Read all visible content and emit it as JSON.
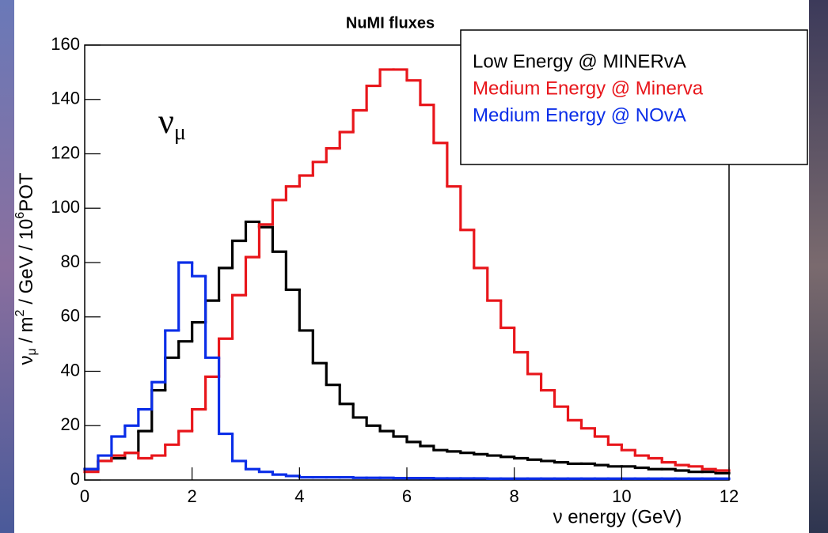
{
  "chart_data": {
    "type": "histogram",
    "title": "NuMI fluxes",
    "x_label": "ν energy (GeV)",
    "y_label_parts": [
      "ν",
      "μ",
      " / m",
      "2",
      " / GeV / 10",
      "6",
      "POT"
    ],
    "annotation_parts": [
      "ν",
      "μ"
    ],
    "legend": "top-right",
    "bins": [
      0,
      0.25,
      0.5,
      0.75,
      1,
      1.25,
      1.5,
      1.75,
      2,
      2.25,
      2.5,
      2.75,
      3,
      3.25,
      3.5,
      3.75,
      4,
      4.25,
      4.5,
      4.75,
      5,
      5.25,
      5.5,
      5.75,
      6,
      6.25,
      6.5,
      6.75,
      7,
      7.25,
      7.5,
      7.75,
      8,
      8.25,
      8.5,
      8.75,
      9,
      9.25,
      9.5,
      9.75,
      10,
      10.25,
      10.5,
      10.75,
      11,
      11.25,
      11.5,
      11.75,
      12
    ],
    "series": [
      {
        "name": "Low Energy @ MINERvA",
        "color": "#000000",
        "values": [
          4,
          7,
          8,
          10,
          18,
          33,
          45,
          51,
          58,
          66,
          78,
          88,
          95,
          93,
          84,
          70,
          55,
          43,
          35,
          28,
          23,
          20,
          18,
          16,
          14,
          12.5,
          11,
          10.5,
          10,
          9.5,
          9,
          8.5,
          8,
          7.5,
          7,
          6.5,
          6,
          6,
          5.5,
          5,
          5,
          4.5,
          4,
          4,
          3.5,
          3,
          3,
          2.5
        ]
      },
      {
        "name": "Medium Energy @ Minerva",
        "color": "#e8161b",
        "values": [
          3,
          7,
          9,
          10,
          8,
          9,
          13,
          18,
          26,
          38,
          52,
          68,
          82,
          94,
          103,
          108,
          112,
          117,
          122,
          128,
          136,
          145,
          151,
          151,
          147,
          138,
          124,
          108,
          92,
          78,
          66,
          56,
          47,
          39,
          33,
          27,
          22,
          19,
          16,
          13,
          11,
          9,
          8,
          6.5,
          5.5,
          5,
          4,
          3.5
        ]
      },
      {
        "name": "Medium Energy @ NOvA",
        "color": "#0b2ee8",
        "values": [
          4,
          9,
          16,
          20,
          26,
          36,
          55,
          80,
          75,
          45,
          17,
          7,
          4,
          3,
          2,
          1.5,
          1,
          1,
          1,
          1,
          0.8,
          0.8,
          0.8,
          0.7,
          0.7,
          0.7,
          0.6,
          0.6,
          0.6,
          0.6,
          0.5,
          0.5,
          0.5,
          0.5,
          0.5,
          0.5,
          0.5,
          0.5,
          0.5,
          0.5,
          0.5,
          0.5,
          0.5,
          0.5,
          0.5,
          0.5,
          0.5,
          0.5
        ]
      }
    ],
    "xlim": [
      0,
      12
    ],
    "xticks": [
      0,
      2,
      4,
      6,
      8,
      10,
      12
    ],
    "ylim": [
      0,
      160
    ],
    "yticks": [
      0,
      20,
      40,
      60,
      80,
      100,
      120,
      140,
      160
    ]
  }
}
